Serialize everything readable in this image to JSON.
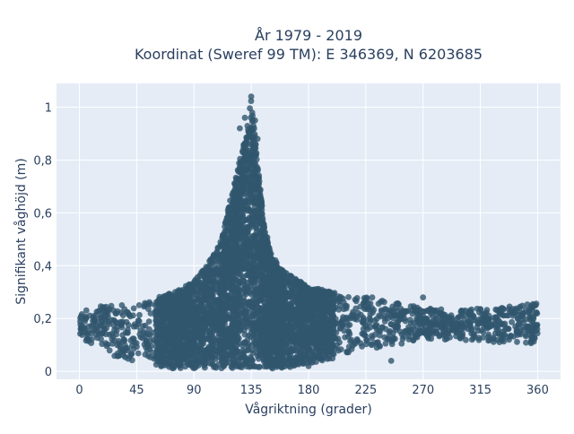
{
  "chart_data": {
    "type": "scatter",
    "title_line1": "År 1979 - 2019",
    "title_line2": "Koordinat (Sweref 99 TM): E 346369, N 6203685",
    "xlabel": "Vågriktning (grader)",
    "ylabel": "Signifikant våghöjd (m)",
    "xlim": [
      -18,
      378
    ],
    "ylim": [
      -0.03,
      1.09
    ],
    "xticks": [
      0,
      45,
      90,
      135,
      180,
      225,
      270,
      315,
      360
    ],
    "xtick_labels": [
      "0",
      "45",
      "90",
      "135",
      "180",
      "225",
      "270",
      "315",
      "360"
    ],
    "yticks": [
      0,
      0.2,
      0.4,
      0.6,
      0.8,
      1.0
    ],
    "ytick_labels": [
      "0",
      "0,2",
      "0,4",
      "0,6",
      "0,8",
      "1"
    ],
    "grid": true,
    "marker_color": "#31566e",
    "plot_bgcolor": "#e5ecf6",
    "gridline_color": "#ffffff",
    "envelope": {
      "x": [
        0,
        10,
        20,
        30,
        45,
        60,
        75,
        90,
        100,
        110,
        115,
        120,
        125,
        130,
        133,
        135,
        137,
        140,
        145,
        150,
        160,
        170,
        180,
        200,
        225,
        250,
        270,
        300,
        315,
        330,
        345,
        360
      ],
      "upper": [
        0.22,
        0.24,
        0.25,
        0.25,
        0.26,
        0.28,
        0.3,
        0.34,
        0.4,
        0.48,
        0.58,
        0.68,
        0.78,
        0.88,
        0.96,
        1.04,
        0.94,
        0.78,
        0.58,
        0.45,
        0.38,
        0.35,
        0.32,
        0.3,
        0.28,
        0.26,
        0.24,
        0.23,
        0.24,
        0.24,
        0.25,
        0.26
      ],
      "lower": [
        0.1,
        0.1,
        0.08,
        0.05,
        0.03,
        0.02,
        0.01,
        0.01,
        0.01,
        0.01,
        0.01,
        0.01,
        0.01,
        0.01,
        0.01,
        0.01,
        0.01,
        0.01,
        0.01,
        0.01,
        0.01,
        0.02,
        0.03,
        0.05,
        0.08,
        0.1,
        0.12,
        0.12,
        0.11,
        0.11,
        0.1,
        0.1
      ]
    }
  }
}
